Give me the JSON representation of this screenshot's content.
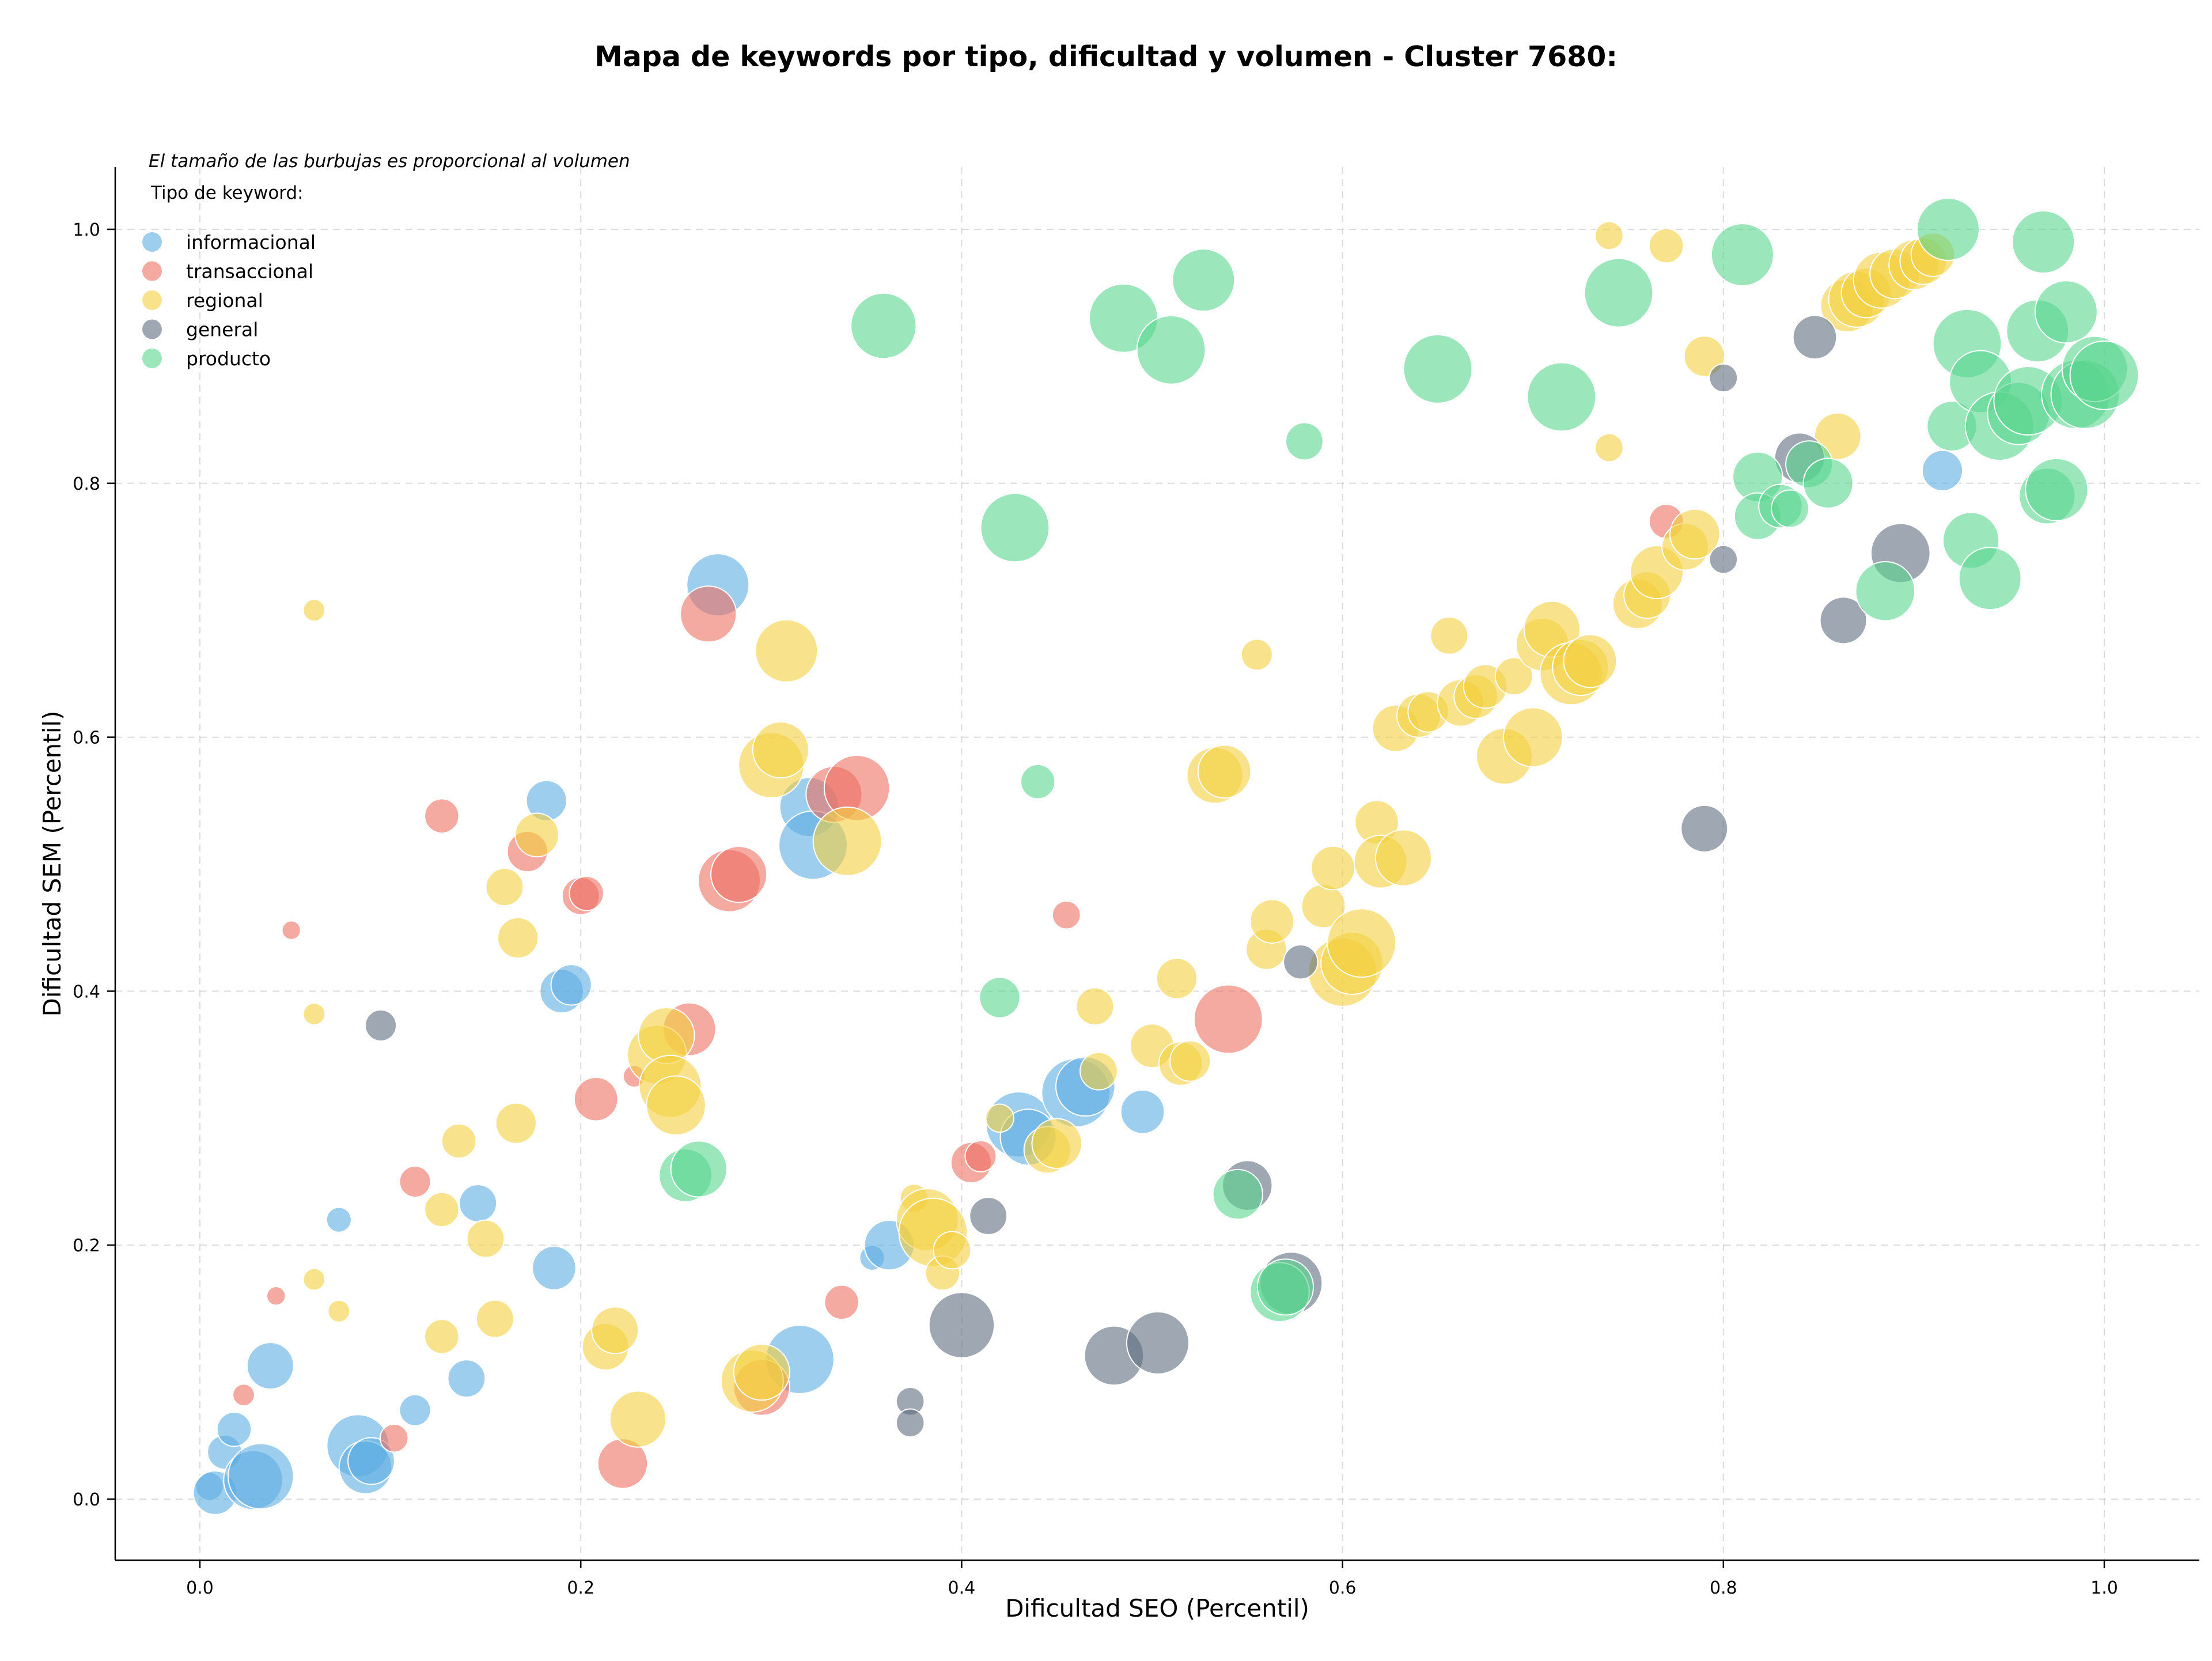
{
  "chart_data": {
    "type": "scatter",
    "title": "Mapa de keywords por tipo, dificultad y volumen - Cluster 7680:",
    "xlabel": "Dificultad SEO (Percentil)",
    "ylabel": "Dificultad SEM (Percentil)",
    "xlim": [
      -0.045,
      1.05
    ],
    "ylim": [
      -0.045,
      1.05
    ],
    "xticks": [
      "0.0",
      "0.2",
      "0.4",
      "0.6",
      "0.8",
      "1.0"
    ],
    "yticks": [
      "0.0",
      "0.2",
      "0.4",
      "0.6",
      "0.8",
      "1.0"
    ],
    "grid": true,
    "legend_placement": "upper-left",
    "note": "El tamaño de las burbujas es proporcional al volumen",
    "legend_title": "Tipo de keyword:",
    "series": [
      {
        "name": "informacional",
        "color": "#5DADE2",
        "points": [
          [
            0.005,
            0.01,
            18
          ],
          [
            0.008,
            0.005,
            28
          ],
          [
            0.013,
            0.037,
            22
          ],
          [
            0.018,
            0.055,
            22
          ],
          [
            0.028,
            0.015,
            38
          ],
          [
            0.032,
            0.018,
            42
          ],
          [
            0.037,
            0.105,
            30
          ],
          [
            0.073,
            0.22,
            16
          ],
          [
            0.083,
            0.042,
            40
          ],
          [
            0.087,
            0.025,
            34
          ],
          [
            0.09,
            0.03,
            30
          ],
          [
            0.113,
            0.07,
            20
          ],
          [
            0.14,
            0.095,
            24
          ],
          [
            0.146,
            0.233,
            24
          ],
          [
            0.182,
            0.55,
            26
          ],
          [
            0.186,
            0.182,
            28
          ],
          [
            0.19,
            0.4,
            28
          ],
          [
            0.195,
            0.405,
            26
          ],
          [
            0.272,
            0.72,
            40
          ],
          [
            0.315,
            0.11,
            44
          ],
          [
            0.32,
            0.545,
            38
          ],
          [
            0.322,
            0.515,
            44
          ],
          [
            0.353,
            0.19,
            16
          ],
          [
            0.362,
            0.2,
            32
          ],
          [
            0.43,
            0.295,
            42
          ],
          [
            0.435,
            0.285,
            36
          ],
          [
            0.46,
            0.32,
            44
          ],
          [
            0.465,
            0.325,
            38
          ],
          [
            0.495,
            0.305,
            28
          ],
          [
            0.915,
            0.81,
            26
          ]
        ]
      },
      {
        "name": "transaccional",
        "color": "#EC7063",
        "points": [
          [
            0.023,
            0.082,
            14
          ],
          [
            0.04,
            0.16,
            12
          ],
          [
            0.048,
            0.448,
            12
          ],
          [
            0.102,
            0.048,
            18
          ],
          [
            0.113,
            0.25,
            20
          ],
          [
            0.127,
            0.538,
            22
          ],
          [
            0.172,
            0.51,
            26
          ],
          [
            0.2,
            0.475,
            24
          ],
          [
            0.203,
            0.477,
            22
          ],
          [
            0.208,
            0.315,
            28
          ],
          [
            0.222,
            0.028,
            32
          ],
          [
            0.228,
            0.333,
            14
          ],
          [
            0.257,
            0.37,
            34
          ],
          [
            0.267,
            0.697,
            36
          ],
          [
            0.278,
            0.487,
            40
          ],
          [
            0.283,
            0.492,
            36
          ],
          [
            0.295,
            0.088,
            36
          ],
          [
            0.333,
            0.555,
            36
          ],
          [
            0.337,
            0.155,
            22
          ],
          [
            0.345,
            0.56,
            42
          ],
          [
            0.405,
            0.265,
            26
          ],
          [
            0.41,
            0.27,
            20
          ],
          [
            0.455,
            0.46,
            18
          ],
          [
            0.54,
            0.378,
            44
          ],
          [
            0.77,
            0.77,
            22
          ]
        ]
      },
      {
        "name": "regional",
        "color": "#F4D03F",
        "points": [
          [
            0.06,
            0.7,
            14
          ],
          [
            0.06,
            0.382,
            14
          ],
          [
            0.06,
            0.173,
            14
          ],
          [
            0.073,
            0.148,
            14
          ],
          [
            0.127,
            0.128,
            22
          ],
          [
            0.127,
            0.228,
            22
          ],
          [
            0.136,
            0.282,
            22
          ],
          [
            0.15,
            0.205,
            24
          ],
          [
            0.155,
            0.142,
            24
          ],
          [
            0.16,
            0.482,
            24
          ],
          [
            0.166,
            0.296,
            26
          ],
          [
            0.167,
            0.442,
            26
          ],
          [
            0.177,
            0.523,
            28
          ],
          [
            0.213,
            0.12,
            30
          ],
          [
            0.218,
            0.133,
            30
          ],
          [
            0.23,
            0.063,
            36
          ],
          [
            0.24,
            0.35,
            38
          ],
          [
            0.245,
            0.365,
            36
          ],
          [
            0.247,
            0.325,
            40
          ],
          [
            0.25,
            0.31,
            38
          ],
          [
            0.29,
            0.093,
            40
          ],
          [
            0.295,
            0.1,
            36
          ],
          [
            0.3,
            0.578,
            42
          ],
          [
            0.305,
            0.59,
            36
          ],
          [
            0.308,
            0.668,
            40
          ],
          [
            0.34,
            0.518,
            44
          ],
          [
            0.375,
            0.237,
            18
          ],
          [
            0.382,
            0.22,
            40
          ],
          [
            0.385,
            0.21,
            44
          ],
          [
            0.39,
            0.178,
            22
          ],
          [
            0.395,
            0.196,
            24
          ],
          [
            0.42,
            0.3,
            18
          ],
          [
            0.445,
            0.275,
            30
          ],
          [
            0.45,
            0.28,
            32
          ],
          [
            0.47,
            0.388,
            24
          ],
          [
            0.472,
            0.337,
            24
          ],
          [
            0.5,
            0.357,
            28
          ],
          [
            0.515,
            0.343,
            28
          ],
          [
            0.52,
            0.345,
            26
          ],
          [
            0.513,
            0.41,
            26
          ],
          [
            0.533,
            0.57,
            36
          ],
          [
            0.538,
            0.573,
            34
          ],
          [
            0.555,
            0.665,
            20
          ],
          [
            0.56,
            0.433,
            26
          ],
          [
            0.563,
            0.455,
            28
          ],
          [
            0.59,
            0.467,
            28
          ],
          [
            0.595,
            0.497,
            28
          ],
          [
            0.6,
            0.415,
            44
          ],
          [
            0.605,
            0.422,
            40
          ],
          [
            0.61,
            0.438,
            44
          ],
          [
            0.618,
            0.533,
            28
          ],
          [
            0.62,
            0.502,
            34
          ],
          [
            0.632,
            0.505,
            36
          ],
          [
            0.628,
            0.607,
            30
          ],
          [
            0.64,
            0.617,
            28
          ],
          [
            0.645,
            0.62,
            26
          ],
          [
            0.656,
            0.68,
            24
          ],
          [
            0.662,
            0.627,
            30
          ],
          [
            0.67,
            0.632,
            28
          ],
          [
            0.675,
            0.64,
            28
          ],
          [
            0.685,
            0.585,
            36
          ],
          [
            0.69,
            0.648,
            24
          ],
          [
            0.7,
            0.6,
            38
          ],
          [
            0.705,
            0.673,
            34
          ],
          [
            0.71,
            0.685,
            36
          ],
          [
            0.72,
            0.65,
            40
          ],
          [
            0.725,
            0.655,
            36
          ],
          [
            0.73,
            0.66,
            34
          ],
          [
            0.74,
            0.995,
            18
          ],
          [
            0.74,
            0.828,
            18
          ],
          [
            0.755,
            0.705,
            32
          ],
          [
            0.76,
            0.712,
            30
          ],
          [
            0.765,
            0.73,
            34
          ],
          [
            0.77,
            0.987,
            22
          ],
          [
            0.78,
            0.75,
            30
          ],
          [
            0.785,
            0.76,
            32
          ],
          [
            0.79,
            0.9,
            26
          ],
          [
            0.86,
            0.837,
            30
          ],
          [
            0.865,
            0.94,
            34
          ],
          [
            0.87,
            0.945,
            36
          ],
          [
            0.875,
            0.95,
            32
          ],
          [
            0.883,
            0.96,
            36
          ],
          [
            0.89,
            0.965,
            32
          ],
          [
            0.9,
            0.972,
            32
          ],
          [
            0.905,
            0.975,
            30
          ],
          [
            0.91,
            0.98,
            28
          ]
        ]
      },
      {
        "name": "general",
        "color": "#5D6D7E",
        "points": [
          [
            0.095,
            0.373,
            20
          ],
          [
            0.373,
            0.077,
            18
          ],
          [
            0.373,
            0.06,
            18
          ],
          [
            0.4,
            0.137,
            42
          ],
          [
            0.414,
            0.223,
            24
          ],
          [
            0.48,
            0.113,
            38
          ],
          [
            0.503,
            0.123,
            40
          ],
          [
            0.55,
            0.247,
            32
          ],
          [
            0.573,
            0.17,
            40
          ],
          [
            0.578,
            0.423,
            22
          ],
          [
            0.79,
            0.528,
            30
          ],
          [
            0.8,
            0.883,
            18
          ],
          [
            0.8,
            0.74,
            18
          ],
          [
            0.84,
            0.82,
            32
          ],
          [
            0.848,
            0.915,
            28
          ],
          [
            0.863,
            0.692,
            30
          ],
          [
            0.893,
            0.745,
            38
          ]
        ]
      },
      {
        "name": "producto",
        "color": "#58D68D",
        "points": [
          [
            0.255,
            0.255,
            34
          ],
          [
            0.262,
            0.26,
            36
          ],
          [
            0.359,
            0.924,
            42
          ],
          [
            0.42,
            0.395,
            26
          ],
          [
            0.44,
            0.565,
            22
          ],
          [
            0.428,
            0.765,
            44
          ],
          [
            0.485,
            0.93,
            44
          ],
          [
            0.51,
            0.905,
            44
          ],
          [
            0.527,
            0.96,
            40
          ],
          [
            0.545,
            0.24,
            32
          ],
          [
            0.567,
            0.163,
            38
          ],
          [
            0.57,
            0.167,
            36
          ],
          [
            0.58,
            0.833,
            24
          ],
          [
            0.65,
            0.89,
            44
          ],
          [
            0.715,
            0.868,
            44
          ],
          [
            0.745,
            0.95,
            44
          ],
          [
            0.81,
            0.98,
            40
          ],
          [
            0.818,
            0.805,
            32
          ],
          [
            0.818,
            0.774,
            30
          ],
          [
            0.83,
            0.782,
            28
          ],
          [
            0.835,
            0.78,
            24
          ],
          [
            0.845,
            0.815,
            30
          ],
          [
            0.855,
            0.8,
            32
          ],
          [
            0.885,
            0.715,
            38
          ],
          [
            0.918,
            1.0,
            40
          ],
          [
            0.92,
            0.845,
            32
          ],
          [
            0.928,
            0.91,
            44
          ],
          [
            0.93,
            0.755,
            36
          ],
          [
            0.935,
            0.88,
            40
          ],
          [
            0.94,
            0.725,
            40
          ],
          [
            0.945,
            0.845,
            44
          ],
          [
            0.955,
            0.855,
            40
          ],
          [
            0.96,
            0.865,
            44
          ],
          [
            0.965,
            0.92,
            40
          ],
          [
            0.968,
            0.99,
            40
          ],
          [
            0.97,
            0.79,
            36
          ],
          [
            0.975,
            0.795,
            40
          ],
          [
            0.98,
            0.935,
            40
          ],
          [
            0.985,
            0.87,
            44
          ],
          [
            0.99,
            0.87,
            44
          ],
          [
            0.995,
            0.89,
            42
          ],
          [
            1.0,
            0.885,
            44
          ]
        ]
      }
    ]
  }
}
